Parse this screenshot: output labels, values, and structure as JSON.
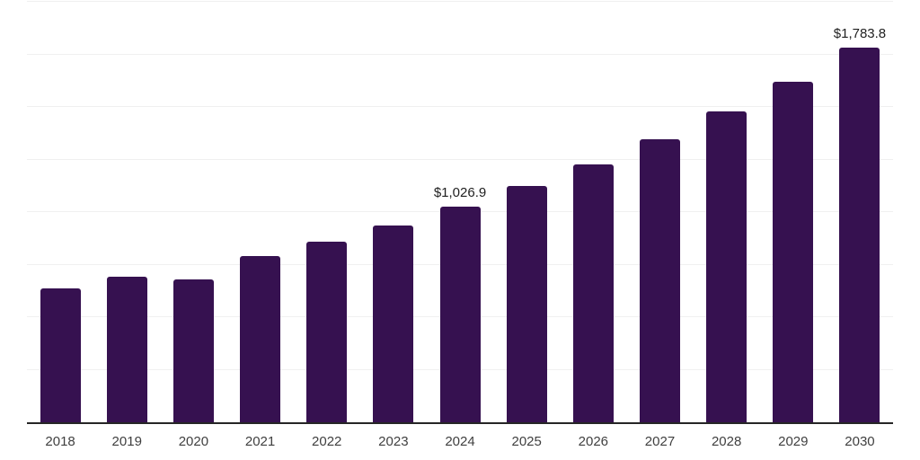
{
  "chart_data": {
    "type": "bar",
    "title": "",
    "xlabel": "",
    "ylabel": "",
    "categories": [
      "2018",
      "2019",
      "2020",
      "2021",
      "2022",
      "2023",
      "2024",
      "2025",
      "2026",
      "2027",
      "2028",
      "2029",
      "2030"
    ],
    "values": [
      638,
      692,
      681,
      791,
      858,
      937,
      1026.9,
      1124,
      1227,
      1346,
      1478,
      1621,
      1783.8
    ],
    "point_labels": [
      "",
      "",
      "",
      "",
      "",
      "",
      "$1,026.9",
      "",
      "",
      "",
      "",
      "",
      "$1,783.8"
    ],
    "ylim": [
      0,
      2000
    ],
    "gridline_step": 250,
    "grid": "horizontal-only",
    "legend": "none",
    "y_axis_labels_visible": false
  },
  "colors": {
    "background": "#ffffff",
    "bar": "#361150",
    "gridline": "#f0f0f0",
    "axis": "#262626",
    "tick_label": "#404040",
    "data_label": "#1f1f1f"
  }
}
